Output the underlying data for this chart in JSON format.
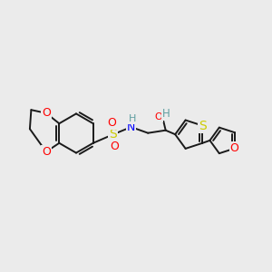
{
  "background_color": "#ebebeb",
  "atom_colors": {
    "O": "#ff0000",
    "S_sulfonyl": "#cccc00",
    "S_thio": "#cccc00",
    "N": "#0000ff",
    "H": "#5f9ea0",
    "C": "#1a1a1a"
  },
  "bond_color": "#1a1a1a",
  "bond_width": 1.4,
  "font_size_atom": 8
}
